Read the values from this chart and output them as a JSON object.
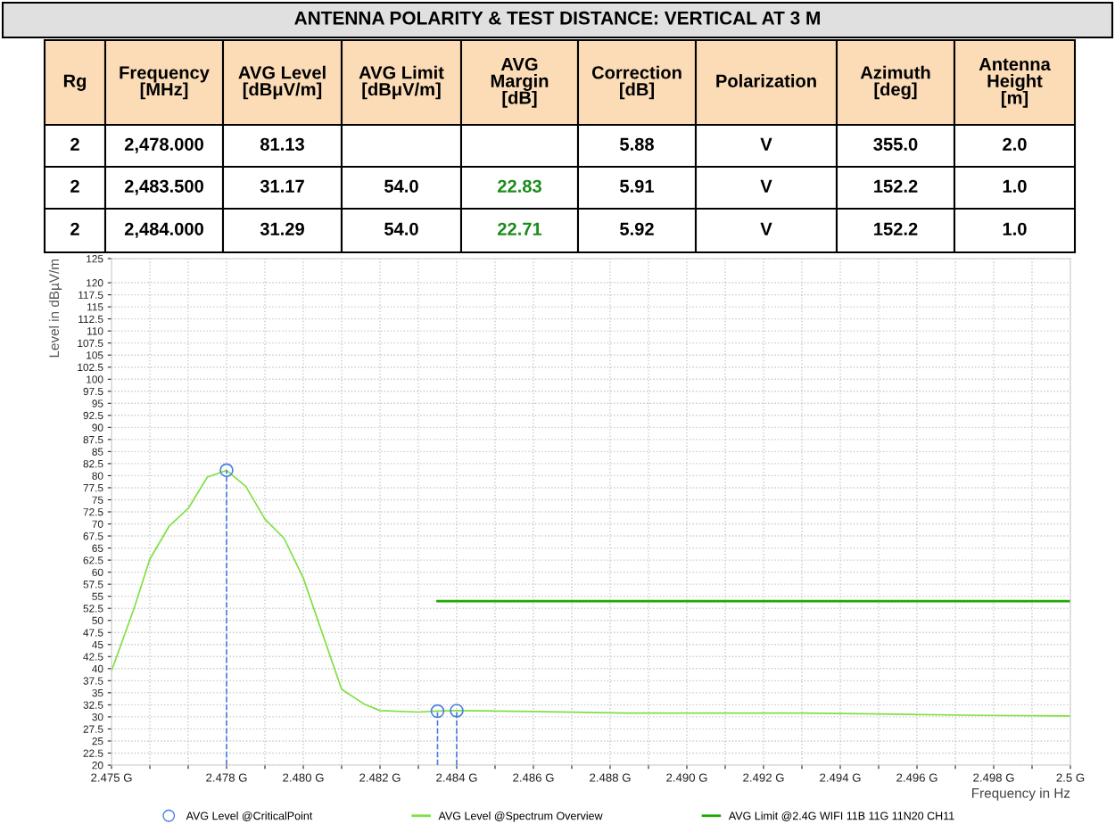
{
  "chart_data": {
    "type": "line",
    "title": "ANTENNA POLARITY & TEST DISTANCE: VERTICAL AT 3 M",
    "xlabel": "Frequency in Hz",
    "ylabel": "Level in dBµV/m",
    "xlim": [
      2.475,
      2.5
    ],
    "xticks": [
      {
        "value": 2.475,
        "label": "2.475 G"
      },
      {
        "value": 2.476,
        "label": null
      },
      {
        "value": 2.477,
        "label": null
      },
      {
        "value": 2.478,
        "label": "2.478 G"
      },
      {
        "value": 2.479,
        "label": null
      },
      {
        "value": 2.48,
        "label": "2.480 G"
      },
      {
        "value": 2.481,
        "label": null
      },
      {
        "value": 2.482,
        "label": "2.482 G"
      },
      {
        "value": 2.483,
        "label": null
      },
      {
        "value": 2.484,
        "label": "2.484 G"
      },
      {
        "value": 2.485,
        "label": null
      },
      {
        "value": 2.486,
        "label": "2.486 G"
      },
      {
        "value": 2.487,
        "label": null
      },
      {
        "value": 2.488,
        "label": "2.488 G"
      },
      {
        "value": 2.489,
        "label": null
      },
      {
        "value": 2.49,
        "label": "2.490 G"
      },
      {
        "value": 2.491,
        "label": null
      },
      {
        "value": 2.492,
        "label": "2.492 G"
      },
      {
        "value": 2.493,
        "label": null
      },
      {
        "value": 2.494,
        "label": "2.494 G"
      },
      {
        "value": 2.495,
        "label": null
      },
      {
        "value": 2.496,
        "label": "2.496 G"
      },
      {
        "value": 2.497,
        "label": null
      },
      {
        "value": 2.498,
        "label": "2.498 G"
      },
      {
        "value": 2.499,
        "label": null
      },
      {
        "value": 2.5,
        "label": "2.5 G"
      }
    ],
    "ylim": [
      20,
      125
    ],
    "yticks": [
      20,
      22.5,
      25,
      27.5,
      30,
      32.5,
      35,
      37.5,
      40,
      42.5,
      45,
      47.5,
      50,
      52.5,
      55,
      57.5,
      60,
      62.5,
      65,
      67.5,
      70,
      72.5,
      75,
      77.5,
      80,
      82.5,
      85,
      87.5,
      90,
      92.5,
      95,
      97.5,
      100,
      102.5,
      105,
      107.5,
      110,
      112.5,
      115,
      117.5,
      120,
      125
    ],
    "grid": true,
    "legend": "bottom",
    "series": [
      {
        "name": "AVG Level @CriticalPoint",
        "type": "lollipop",
        "color": "#4a7fe0",
        "marker": "circle",
        "line_style": "dashed",
        "x": [
          2.478,
          2.4835,
          2.484
        ],
        "values": [
          81.13,
          31.17,
          31.29
        ]
      },
      {
        "name": "AVG Level @Spectrum Overview",
        "color": "#7fe040",
        "x": [
          2.475,
          2.47558,
          2.476,
          2.4765,
          2.477,
          2.4775,
          2.478,
          2.4785,
          2.479,
          2.4795,
          2.48,
          2.481,
          2.4816,
          2.482,
          2.483,
          2.4835,
          2.484,
          2.486,
          2.4884,
          2.493,
          2.495,
          2.4977,
          2.5
        ],
        "values": [
          39.5,
          52.3,
          62.7,
          69.5,
          73.2,
          79.7,
          81.1,
          77.8,
          71,
          67,
          58.8,
          35.7,
          32.6,
          31.3,
          31.0,
          31.2,
          31.3,
          31.1,
          30.8,
          30.8,
          30.6,
          30.3,
          30.2
        ]
      },
      {
        "name": "AVG Limit @2.4G WIFI 11B 11G 11N20 CH11",
        "color": "#1aaa00",
        "x": [
          2.4835,
          2.5
        ],
        "values": [
          54,
          54
        ]
      }
    ],
    "annotations": [
      "Rg",
      "Frequency\n[MHz]",
      "AVG Level\n[dBμV/m]",
      "AVG Limit\n[dBμV/m]",
      "AVG\nMargin\n[dB]",
      "Correction\n[dB]",
      "Polarization",
      "Azimuth\n[deg]",
      "Antenna\nHeight\n[m]",
      "2",
      "2,478.000",
      "81.13",
      null,
      null,
      "5.88",
      "V",
      "355.0",
      "2.0",
      "2",
      "2,483.500",
      "31.17",
      "54.0",
      "22.83",
      "5.91",
      "V",
      "152.2",
      "1.0",
      "2",
      "2,484.000",
      "31.29",
      "54.0",
      "22.71",
      "5.92",
      "V",
      "152.2",
      "1.0"
    ]
  }
}
